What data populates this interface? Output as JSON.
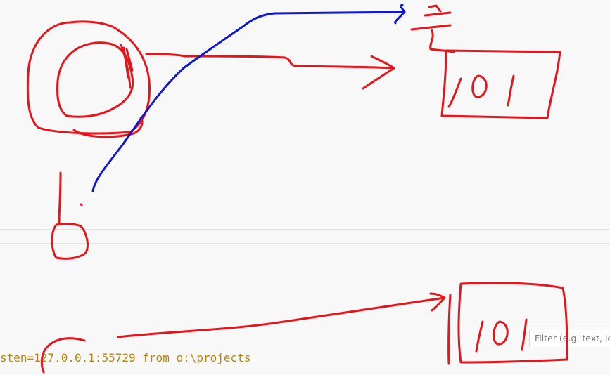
{
  "terminal": {
    "line_visible": "sten=127.0.0.1:55729 from o:\\projects"
  },
  "filter": {
    "placeholder": "Filter (e.g. text, le"
  },
  "annotations": {
    "ink_colors": {
      "red": "#e4161c",
      "blue": "#1018c8"
    },
    "box_top_digits": "101",
    "box_bottom_digits": "101"
  }
}
